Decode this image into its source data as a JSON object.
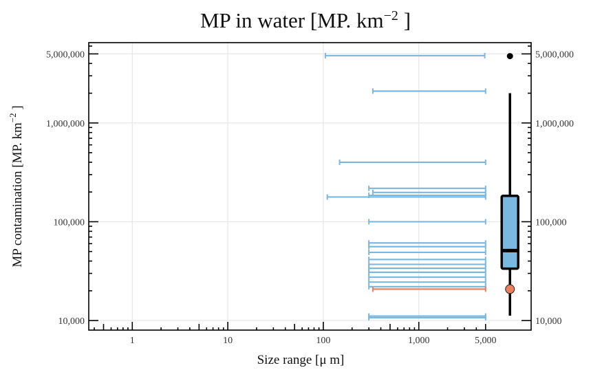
{
  "chart_data": {
    "type": "range_interval",
    "title": "MP in water [MP. km",
    "title_exponent": "−2",
    "title_suffix": " ]",
    "xlabel": "Size range [μ m]",
    "ylabel": "MP contamination [MP. km",
    "ylabel_exponent": "−2",
    "ylabel_suffix": " ]",
    "x_scale": "log",
    "y_scale": "log",
    "xlim": [
      0.35,
      15000
    ],
    "ylim": [
      8000,
      6500000
    ],
    "x_ticks": [
      {
        "value": 1,
        "label": "1"
      },
      {
        "value": 10,
        "label": "10"
      },
      {
        "value": 100,
        "label": "100"
      },
      {
        "value": 1000,
        "label": "1,000"
      },
      {
        "value": 5000,
        "label": "5,000"
      }
    ],
    "y_ticks": [
      {
        "value": 10000,
        "label": "10,000"
      },
      {
        "value": 100000,
        "label": "100,000"
      },
      {
        "value": 1000000,
        "label": "1,000,000"
      },
      {
        "value": 5000000,
        "label": "5,000,000"
      }
    ],
    "grid": true,
    "colors": {
      "interval": "#7ab8e0",
      "highlight": "#e8805f",
      "box_fill": "#7ab8e0",
      "axis": "#000000",
      "grid": "#e6e6e6"
    },
    "intervals": [
      {
        "y": 4800000,
        "x_min": 105,
        "x_max": 4900
      },
      {
        "y": 2100000,
        "x_min": 330,
        "x_max": 5000
      },
      {
        "y": 400000,
        "x_min": 148,
        "x_max": 5000
      },
      {
        "y": 218000,
        "x_min": 300,
        "x_max": 5000
      },
      {
        "y": 198000,
        "x_min": 330,
        "x_max": 5000
      },
      {
        "y": 185000,
        "x_min": 300,
        "x_max": 5000
      },
      {
        "y": 178000,
        "x_min": 110,
        "x_max": 5000
      },
      {
        "y": 100000,
        "x_min": 300,
        "x_max": 5000
      },
      {
        "y": 61000,
        "x_min": 300,
        "x_max": 5000
      },
      {
        "y": 56000,
        "x_min": 300,
        "x_max": 5000
      },
      {
        "y": 49000,
        "x_min": 300,
        "x_max": 5000
      },
      {
        "y": 41500,
        "x_min": 300,
        "x_max": 5000
      },
      {
        "y": 37000,
        "x_min": 300,
        "x_max": 5000
      },
      {
        "y": 33800,
        "x_min": 300,
        "x_max": 5000
      },
      {
        "y": 30800,
        "x_min": 300,
        "x_max": 5000
      },
      {
        "y": 27500,
        "x_min": 300,
        "x_max": 5000
      },
      {
        "y": 24500,
        "x_min": 300,
        "x_max": 5000
      },
      {
        "y": 22000,
        "x_min": 300,
        "x_max": 5000
      },
      {
        "y": 20800,
        "x_min": 330,
        "x_max": 5000,
        "highlight": true
      },
      {
        "y": 11100,
        "x_min": 300,
        "x_max": 5000
      },
      {
        "y": 10700,
        "x_min": 300,
        "x_max": 5000
      }
    ],
    "boxplot": {
      "x_position": 9000,
      "whisker_low": 11200,
      "q1": 33500,
      "median": 51000,
      "q3": 183000,
      "whisker_high": 2000000,
      "outliers": [
        4750000
      ],
      "highlight_point": 20800
    }
  }
}
